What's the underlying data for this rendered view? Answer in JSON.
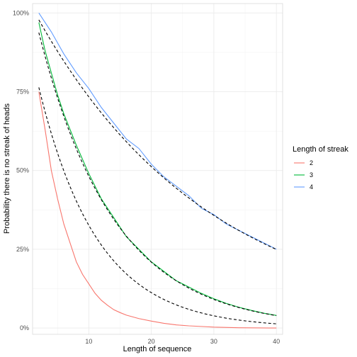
{
  "chart_data": {
    "type": "line",
    "title": "",
    "xlabel": "Length of sequence",
    "ylabel": "Probability there is no streak of heads",
    "xlim": [
      1,
      41
    ],
    "ylim": [
      -0.02,
      1.03
    ],
    "x_ticks": [
      10,
      20,
      30,
      40
    ],
    "y_ticks": [
      0,
      0.25,
      0.5,
      0.75,
      1.0
    ],
    "y_tick_labels": [
      "0%",
      "25%",
      "50%",
      "75%",
      "100%"
    ],
    "grid": true,
    "legend": {
      "title": "Length of streak",
      "placement": "right",
      "entries": [
        "2",
        "3",
        "4"
      ]
    },
    "series": [
      {
        "name": "2",
        "color": "#F8766D",
        "x": [
          2,
          3,
          4,
          5,
          6,
          7,
          8,
          9,
          10,
          11,
          12,
          13,
          14,
          15,
          16,
          18,
          20,
          22,
          24,
          26,
          28,
          30,
          34,
          40
        ],
        "values": [
          0.75,
          0.63,
          0.5,
          0.41,
          0.33,
          0.27,
          0.21,
          0.17,
          0.14,
          0.11,
          0.088,
          0.072,
          0.058,
          0.049,
          0.041,
          0.03,
          0.022,
          0.015,
          0.01,
          0.007,
          0.005,
          0.003,
          0.001,
          0.0
        ]
      },
      {
        "name": "3",
        "color": "#00BA38",
        "x": [
          2,
          3,
          4,
          5,
          6,
          8,
          10,
          12,
          14,
          16,
          18,
          20,
          22,
          24,
          26,
          28,
          30,
          32,
          34,
          36,
          38,
          40
        ],
        "values": [
          0.97,
          0.88,
          0.81,
          0.74,
          0.68,
          0.58,
          0.49,
          0.41,
          0.35,
          0.29,
          0.25,
          0.21,
          0.18,
          0.15,
          0.13,
          0.11,
          0.093,
          0.078,
          0.066,
          0.056,
          0.047,
          0.04
        ]
      },
      {
        "name": "4",
        "color": "#619CFF",
        "x": [
          2,
          4,
          6,
          8,
          10,
          12,
          14,
          16,
          18,
          20,
          22,
          24,
          26,
          28,
          30,
          32,
          34,
          36,
          38,
          40
        ],
        "values": [
          1.0,
          0.94,
          0.87,
          0.81,
          0.76,
          0.7,
          0.65,
          0.6,
          0.57,
          0.52,
          0.48,
          0.45,
          0.42,
          0.38,
          0.36,
          0.33,
          0.31,
          0.29,
          0.27,
          0.25
        ]
      }
    ],
    "fitted_curves": {
      "color": "#000000",
      "style": "dashed",
      "curves": [
        {
          "amplitude": 0.945,
          "decay": 0.899
        },
        {
          "amplitude": 1.108,
          "decay": 0.92
        },
        {
          "amplitude": 1.051,
          "decay": 0.9647
        }
      ]
    }
  }
}
